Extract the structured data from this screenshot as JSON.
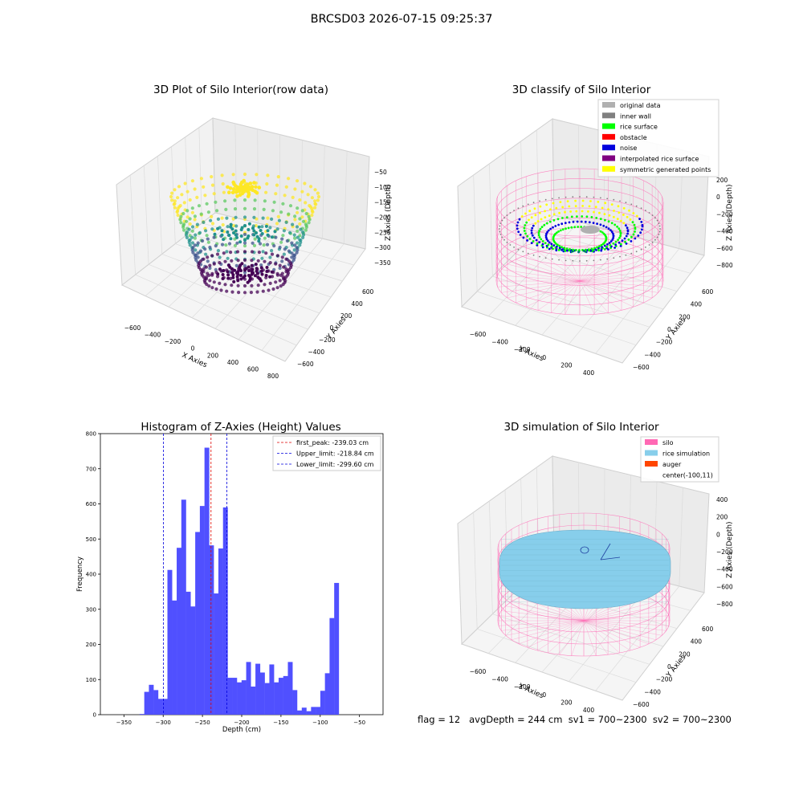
{
  "figure": {
    "title": "BRCSD03 2026-07-15 09:25:37",
    "footer": "flag = 12   avgDepth = 244 cm  sv1 = 700~2300  sv2 = 700~2300"
  },
  "panels": {
    "raw": {
      "title": "3D Plot of Silo Interior(row data)",
      "xlabel": "X Axies",
      "ylabel": "Y Axies",
      "zlabel": "Z Axies (Depth)",
      "xticks": [
        "−600",
        "−400",
        "−200",
        "0",
        "200",
        "400",
        "600",
        "800"
      ],
      "yticks": [
        "−600",
        "−400",
        "−200",
        "0",
        "200",
        "400",
        "600"
      ],
      "zticks": [
        "−50",
        "−100",
        "−150",
        "−200",
        "−250",
        "−300",
        "−350"
      ],
      "colormap": [
        "#fde725",
        "#5ec962",
        "#21918c",
        "#3b528b",
        "#440154"
      ]
    },
    "classify": {
      "title": "3D classify of Silo Interior",
      "xlabel": "X Axies",
      "ylabel": "Y Axies",
      "zlabel": "Z Axies (Depth)",
      "xticks": [
        "−600",
        "−400",
        "−200",
        "0",
        "200",
        "400"
      ],
      "yticks": [
        "−600",
        "−400",
        "−200",
        "0",
        "200",
        "400",
        "600"
      ],
      "zticks": [
        "200",
        "0",
        "−200",
        "−400",
        "−600",
        "−800"
      ],
      "legend": [
        {
          "label": "original data",
          "color": "#b0b0b0"
        },
        {
          "label": "inner wall",
          "color": "#808080"
        },
        {
          "label": "rice surface",
          "color": "#00ff00"
        },
        {
          "label": "obstacle",
          "color": "#ff0000"
        },
        {
          "label": "noise",
          "color": "#0000dd"
        },
        {
          "label": "interpolated rice surface",
          "color": "#800080"
        },
        {
          "label": "symmetric generated points",
          "color": "#ffff00"
        }
      ]
    },
    "simulation": {
      "title": "3D simulation of Silo Interior",
      "xlabel": "X Axies",
      "ylabel": "Y Axies",
      "zlabel": "Z Axies (Depth)",
      "xticks": [
        "−600",
        "−400",
        "−200",
        "0",
        "200",
        "400"
      ],
      "yticks": [
        "−600",
        "−400",
        "−200",
        "0",
        "200",
        "400",
        "600"
      ],
      "zticks": [
        "400",
        "200",
        "0",
        "−200",
        "−400",
        "−600",
        "−800"
      ],
      "legend": [
        {
          "label": "silo",
          "color": "#ff69b4"
        },
        {
          "label": "rice simulation",
          "color": "#87ceeb"
        },
        {
          "label": "auger",
          "color": "#ff4500"
        },
        {
          "label": "center(-100,11)",
          "color": ""
        }
      ]
    }
  },
  "chart_data": {
    "type": "bar",
    "title": "Histogram of Z-Axies (Height) Values",
    "xlabel": "Depth (cm)",
    "ylabel": "Frequency",
    "xlim": [
      -380,
      -20
    ],
    "ylim": [
      0,
      800
    ],
    "xticks": [
      -350,
      -300,
      -250,
      -200,
      -150,
      -100,
      -50
    ],
    "yticks": [
      0,
      100,
      200,
      300,
      400,
      500,
      600,
      700,
      800
    ],
    "bar_color": "#5050ff",
    "bin_start": -330,
    "bin_width": 5.9,
    "values": [
      2,
      65,
      85,
      70,
      45,
      45,
      412,
      325,
      475,
      612,
      350,
      308,
      520,
      594,
      760,
      482,
      345,
      473,
      590,
      105,
      105,
      92,
      98,
      150,
      80,
      145,
      120,
      90,
      143,
      92,
      105,
      110,
      150,
      70,
      12,
      20,
      10,
      22,
      22,
      68,
      118,
      275,
      375
    ],
    "lines": [
      {
        "label": "first_peak: -239.03 cm",
        "x": -239.03,
        "color": "#dd0000"
      },
      {
        "label": "Upper_limit: -218.84 cm",
        "x": -218.84,
        "color": "#0000dd"
      },
      {
        "label": "Lower_limit: -299.60 cm",
        "x": -299.6,
        "color": "#0000dd"
      }
    ],
    "legend_position": "top-right"
  }
}
